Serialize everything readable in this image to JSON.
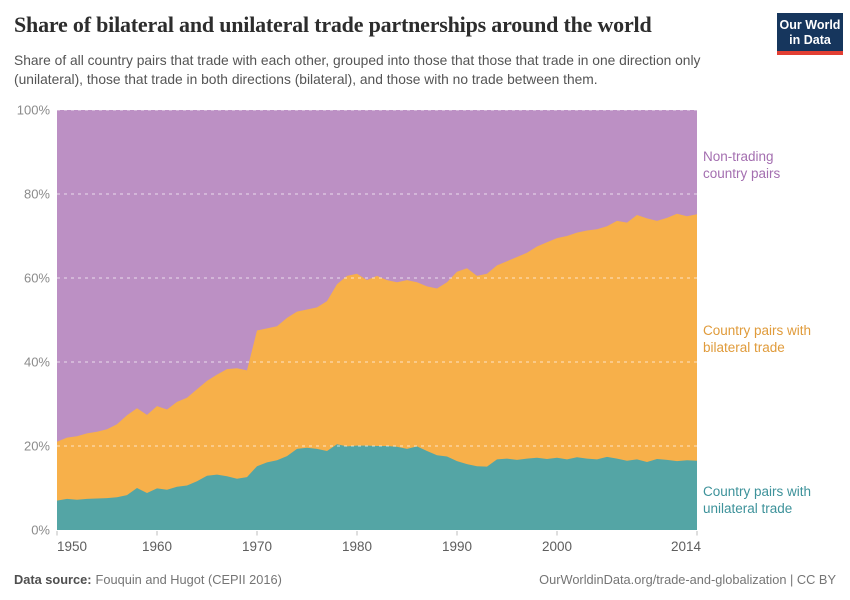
{
  "header": {
    "title": "Share of bilateral and unilateral trade partnerships around the world",
    "subtitle": "Share of all country pairs that trade with each other, grouped into those that those that trade in one direction only (unilateral), those that trade in both directions (bilateral), and those with no trade between them.",
    "logo": {
      "line1": "Our World",
      "line2": "in Data",
      "bg_color": "#16365d",
      "accent_color": "#e23f33"
    }
  },
  "chart_data": {
    "type": "area",
    "stacked": true,
    "unit": "%",
    "ylim": [
      0,
      100
    ],
    "grid": "dashed",
    "legend_position": "right-of-plot",
    "x": [
      1950,
      1951,
      1952,
      1953,
      1954,
      1955,
      1956,
      1957,
      1958,
      1959,
      1960,
      1961,
      1962,
      1963,
      1964,
      1965,
      1966,
      1967,
      1968,
      1969,
      1970,
      1971,
      1972,
      1973,
      1974,
      1975,
      1976,
      1977,
      1978,
      1979,
      1980,
      1981,
      1982,
      1983,
      1984,
      1985,
      1986,
      1987,
      1988,
      1989,
      1990,
      1991,
      1992,
      1993,
      1994,
      1995,
      1996,
      1997,
      1998,
      1999,
      2000,
      2001,
      2002,
      2003,
      2004,
      2005,
      2006,
      2007,
      2008,
      2009,
      2010,
      2011,
      2012,
      2013,
      2014
    ],
    "series": [
      {
        "name": "Country pairs with unilateral trade",
        "label_line1": "Country pairs with",
        "label_line2": "unilateral trade",
        "color": "#54a5a5",
        "label_color": "#3d929a",
        "values": [
          7.0,
          7.4,
          7.2,
          7.4,
          7.5,
          7.6,
          7.8,
          8.3,
          10.0,
          8.8,
          9.9,
          9.6,
          10.3,
          10.6,
          11.6,
          12.9,
          13.2,
          12.8,
          12.2,
          12.6,
          15.2,
          16.1,
          16.6,
          17.6,
          19.3,
          19.6,
          19.3,
          18.8,
          20.4,
          19.9,
          20.1,
          20.1,
          20.0,
          20.0,
          19.8,
          19.3,
          19.9,
          18.8,
          17.8,
          17.5,
          16.4,
          15.7,
          15.2,
          15.1,
          16.8,
          17.0,
          16.7,
          17.0,
          17.2,
          16.9,
          17.2,
          16.8,
          17.3,
          17.0,
          16.8,
          17.4,
          17.0,
          16.5,
          16.8,
          16.2,
          16.9,
          16.7,
          16.4,
          16.6,
          16.5
        ]
      },
      {
        "name": "Country pairs with bilateral trade",
        "label_line1": "Country pairs with",
        "label_line2": "bilateral trade",
        "color": "#f7b04a",
        "label_color": "#e09b3b",
        "values": [
          14.0,
          14.6,
          15.1,
          15.6,
          15.9,
          16.4,
          17.4,
          19.0,
          19.0,
          18.6,
          19.6,
          19.1,
          20.2,
          20.9,
          21.9,
          22.6,
          23.8,
          25.5,
          26.3,
          25.4,
          32.3,
          31.9,
          31.9,
          32.9,
          32.7,
          32.9,
          33.7,
          35.7,
          38.1,
          40.6,
          40.9,
          39.4,
          40.5,
          39.5,
          39.2,
          40.2,
          39.1,
          39.2,
          39.7,
          41.5,
          45.1,
          46.6,
          45.3,
          45.9,
          46.2,
          47.0,
          48.3,
          49.0,
          50.3,
          51.6,
          52.3,
          53.2,
          53.5,
          54.3,
          54.8,
          54.9,
          56.6,
          56.7,
          58.2,
          58.0,
          56.7,
          57.6,
          58.9,
          58.1,
          58.7
        ]
      },
      {
        "name": "Non-trading country pairs",
        "label_line1": "Non-trading",
        "label_line2": "country pairs",
        "color": "#bc90c4",
        "label_color": "#a46fb0",
        "values": [
          79.0,
          78.0,
          77.7,
          77.0,
          76.6,
          76.0,
          74.8,
          72.7,
          71.0,
          72.6,
          70.5,
          71.3,
          69.5,
          68.5,
          66.5,
          64.5,
          63.0,
          61.7,
          61.5,
          62.0,
          52.5,
          52.0,
          51.5,
          49.5,
          48.0,
          47.5,
          47.0,
          45.5,
          41.5,
          39.5,
          39.0,
          40.5,
          39.5,
          40.5,
          41.0,
          40.5,
          41.0,
          42.0,
          42.5,
          41.0,
          38.5,
          37.7,
          39.5,
          39.0,
          37.0,
          36.0,
          35.0,
          34.0,
          32.5,
          31.5,
          30.5,
          30.0,
          29.2,
          28.7,
          28.4,
          27.7,
          26.4,
          26.8,
          25.0,
          25.8,
          26.4,
          25.7,
          24.7,
          25.3,
          24.8
        ]
      }
    ],
    "y_ticks": [
      {
        "value": 0,
        "label": "0%"
      },
      {
        "value": 20,
        "label": "20%"
      },
      {
        "value": 40,
        "label": "40%"
      },
      {
        "value": 60,
        "label": "60%"
      },
      {
        "value": 80,
        "label": "80%"
      },
      {
        "value": 100,
        "label": "100%"
      }
    ],
    "x_ticks": [
      {
        "value": 1950,
        "label": "1950"
      },
      {
        "value": 1960,
        "label": "1960"
      },
      {
        "value": 1970,
        "label": "1970"
      },
      {
        "value": 1980,
        "label": "1980"
      },
      {
        "value": 1990,
        "label": "1990"
      },
      {
        "value": 2000,
        "label": "2000"
      },
      {
        "value": 2014,
        "label": "2014"
      }
    ]
  },
  "footer": {
    "source_label": "Data source:",
    "source_value": "Fouquin and Hugot (CEPII 2016)",
    "credit": "OurWorldinData.org/trade-and-globalization | CC BY"
  }
}
